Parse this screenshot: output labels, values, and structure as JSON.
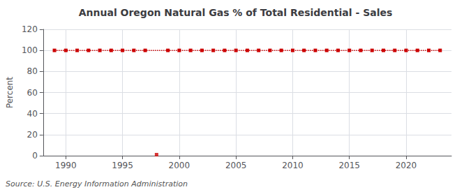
{
  "chart_data": {
    "type": "line",
    "title": "Annual Oregon Natural Gas % of Total Residential - Sales",
    "ylabel": "Percent",
    "annotation": "Source: U.S. Energy Information Administration",
    "xlim": [
      1988,
      2024
    ],
    "xticks": [
      1990,
      1995,
      2000,
      2005,
      2010,
      2015,
      2020
    ],
    "ylim": [
      0,
      120
    ],
    "yticks": [
      0,
      20,
      40,
      60,
      80,
      100,
      120
    ],
    "grid": true,
    "series": [
      {
        "type": "line",
        "color": "#cc0000",
        "marker": "square",
        "line_style": "dotted",
        "x": [
          1989,
          1990,
          1991,
          1992,
          1993,
          1994,
          1995,
          1996,
          1997,
          1999,
          2000,
          2001,
          2002,
          2003,
          2004,
          2005,
          2006,
          2007,
          2008,
          2009,
          2010,
          2011,
          2012,
          2013,
          2014,
          2015,
          2016,
          2017,
          2018,
          2019,
          2020,
          2021,
          2022,
          2023
        ],
        "values": [
          100,
          100,
          100,
          100,
          100,
          100,
          100,
          100,
          100,
          100,
          100,
          100,
          100,
          100,
          100,
          100,
          100,
          100,
          100,
          100,
          100,
          100,
          100,
          100,
          100,
          100,
          100,
          100,
          100,
          100,
          100,
          100,
          100,
          100
        ]
      },
      {
        "type": "scatter",
        "color": "#cc0000",
        "marker": "square",
        "x": [
          1998
        ],
        "values": [
          1
        ]
      }
    ]
  }
}
